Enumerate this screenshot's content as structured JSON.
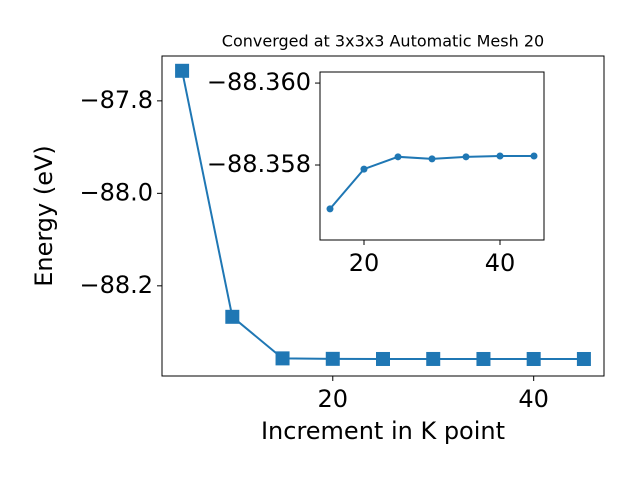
{
  "chart_data": [
    {
      "type": "line",
      "title": "Converged at 3x3x3 Automatic Mesh 20",
      "x_label": "Increment in K point",
      "y_label": "Energy (eV)",
      "x": [
        5,
        10,
        15,
        20,
        25,
        30,
        35,
        40,
        45
      ],
      "series": [
        {
          "color": "#1f77b4",
          "marker": "square",
          "values": [
            -87.735,
            -88.267,
            -88.3569,
            -88.3579,
            -88.3582,
            -88.35815,
            -88.3582,
            -88.35822,
            -88.35822
          ]
        }
      ],
      "xlim": [
        3,
        47
      ],
      "xticks": [
        20,
        40
      ],
      "ylim": [
        -88.395,
        -87.703
      ],
      "yticks": [
        {
          "value": -88.2,
          "label": "−88.2"
        },
        {
          "value": -88.0,
          "label": "−88.0"
        },
        {
          "value": -87.8,
          "label": "−87.8"
        }
      ]
    },
    {
      "type": "line",
      "x": [
        15,
        20,
        25,
        30,
        35,
        40,
        45
      ],
      "series": [
        {
          "color": "#1f77b4",
          "marker": "circle",
          "values": [
            -88.35693,
            -88.3579,
            -88.3582,
            -88.35815,
            -88.3582,
            -88.35822,
            -88.35822
          ]
        }
      ],
      "xlim": [
        13.53,
        46.47
      ],
      "xticks": [
        20,
        40
      ],
      "ylim": [
        -88.35617,
        -88.36027
      ],
      "yticks": [
        {
          "value": -88.358,
          "label": "−88.358"
        },
        {
          "value": -88.36,
          "label": "−88.360"
        }
      ]
    }
  ]
}
